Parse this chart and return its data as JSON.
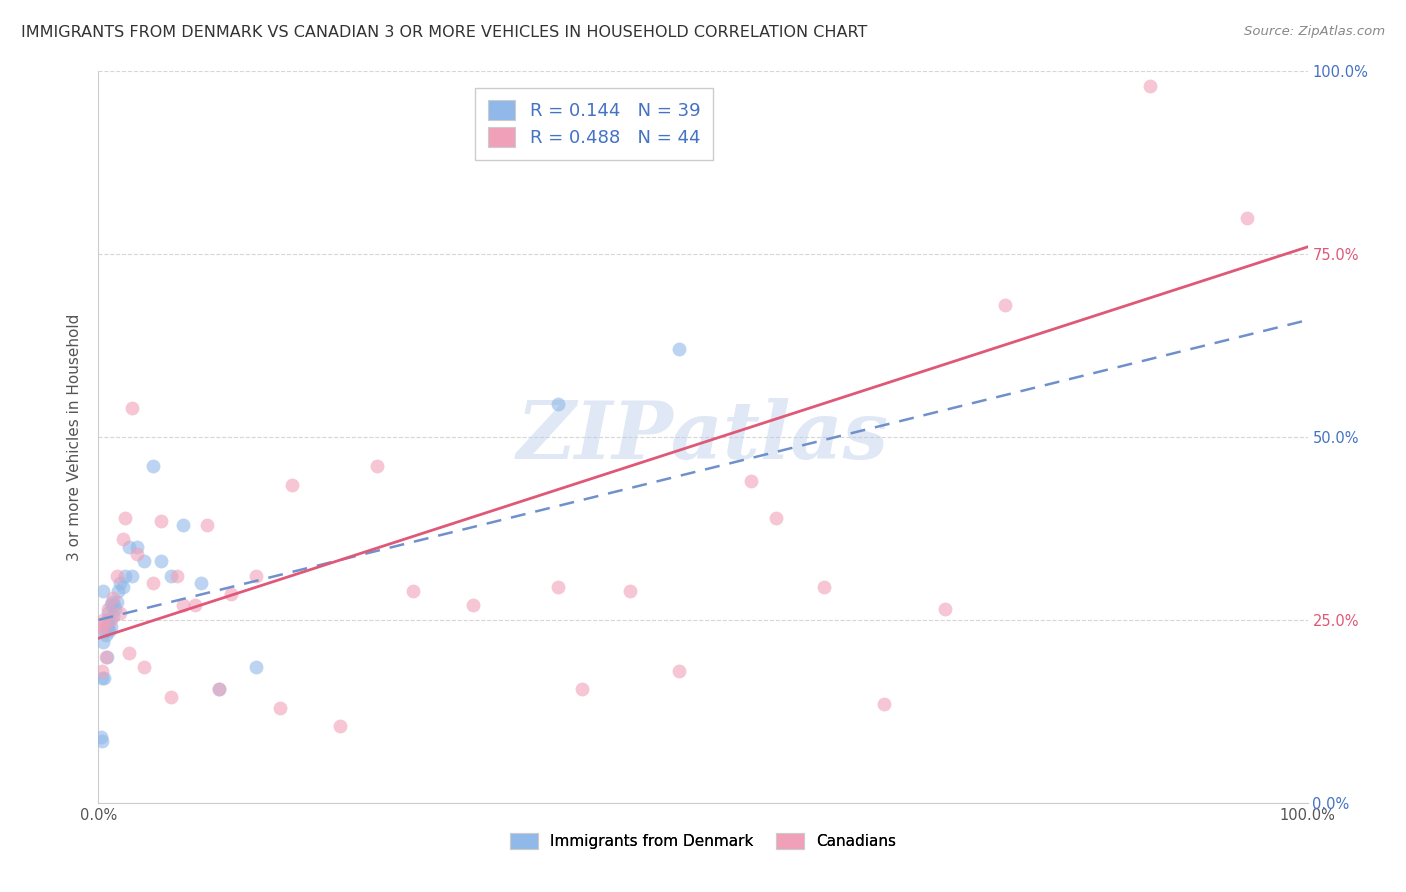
{
  "title": "IMMIGRANTS FROM DENMARK VS CANADIAN 3 OR MORE VEHICLES IN HOUSEHOLD CORRELATION CHART",
  "source": "Source: ZipAtlas.com",
  "ylabel": "3 or more Vehicles in Household",
  "xlim": [
    0,
    1.0
  ],
  "ylim": [
    0,
    1.0
  ],
  "ytick_positions": [
    0.0,
    0.25,
    0.5,
    0.75,
    1.0
  ],
  "right_labels": [
    "0.0%",
    "25.0%",
    "50.0%",
    "75.0%",
    "100.0%"
  ],
  "right_colors": [
    "#4472c4",
    "#e05878",
    "#4472c4",
    "#e05878",
    "#4472c4"
  ],
  "watermark": "ZIPatlas",
  "blue_color": "#90b8e8",
  "pink_color": "#f0a0b8",
  "blue_line_color": "#7090cc",
  "pink_line_color": "#e05878",
  "scatter_alpha": 0.6,
  "marker_size": 100,
  "blue_scatter_x": [
    0.002,
    0.003,
    0.003,
    0.004,
    0.004,
    0.005,
    0.005,
    0.006,
    0.006,
    0.007,
    0.007,
    0.008,
    0.008,
    0.009,
    0.009,
    0.01,
    0.01,
    0.011,
    0.012,
    0.013,
    0.014,
    0.015,
    0.016,
    0.018,
    0.02,
    0.022,
    0.025,
    0.028,
    0.032,
    0.038,
    0.045,
    0.052,
    0.06,
    0.07,
    0.085,
    0.1,
    0.13,
    0.38,
    0.48
  ],
  "blue_scatter_y": [
    0.09,
    0.085,
    0.17,
    0.29,
    0.22,
    0.17,
    0.235,
    0.23,
    0.24,
    0.2,
    0.25,
    0.26,
    0.24,
    0.235,
    0.25,
    0.27,
    0.24,
    0.275,
    0.255,
    0.27,
    0.265,
    0.275,
    0.29,
    0.3,
    0.295,
    0.31,
    0.35,
    0.31,
    0.35,
    0.33,
    0.46,
    0.33,
    0.31,
    0.38,
    0.3,
    0.155,
    0.185,
    0.545,
    0.62
  ],
  "pink_scatter_x": [
    0.002,
    0.003,
    0.004,
    0.005,
    0.006,
    0.008,
    0.01,
    0.012,
    0.015,
    0.018,
    0.02,
    0.022,
    0.025,
    0.028,
    0.032,
    0.038,
    0.045,
    0.052,
    0.06,
    0.065,
    0.07,
    0.08,
    0.09,
    0.1,
    0.11,
    0.13,
    0.15,
    0.16,
    0.2,
    0.23,
    0.26,
    0.31,
    0.38,
    0.4,
    0.44,
    0.48,
    0.54,
    0.56,
    0.6,
    0.65,
    0.7,
    0.75,
    0.87,
    0.95
  ],
  "pink_scatter_y": [
    0.24,
    0.18,
    0.25,
    0.24,
    0.2,
    0.265,
    0.25,
    0.28,
    0.31,
    0.26,
    0.36,
    0.39,
    0.205,
    0.54,
    0.34,
    0.185,
    0.3,
    0.385,
    0.145,
    0.31,
    0.27,
    0.27,
    0.38,
    0.155,
    0.285,
    0.31,
    0.13,
    0.435,
    0.105,
    0.46,
    0.29,
    0.27,
    0.295,
    0.155,
    0.29,
    0.18,
    0.44,
    0.39,
    0.295,
    0.135,
    0.265,
    0.68,
    0.98,
    0.8
  ],
  "blue_line_x": [
    0.0,
    1.0
  ],
  "blue_line_y": [
    0.25,
    0.66
  ],
  "pink_line_x": [
    0.0,
    1.0
  ],
  "pink_line_y": [
    0.225,
    0.76
  ],
  "background_color": "#ffffff",
  "grid_color": "#cccccc",
  "title_fontsize": 11.5,
  "axis_label_fontsize": 11,
  "tick_fontsize": 10.5,
  "legend_box_color_blue": "#90b8e8",
  "legend_box_color_pink": "#f0a0b8",
  "legend_r1": "R = 0.144",
  "legend_n1": "N = 39",
  "legend_r2": "R = 0.488",
  "legend_n2": "N = 44"
}
